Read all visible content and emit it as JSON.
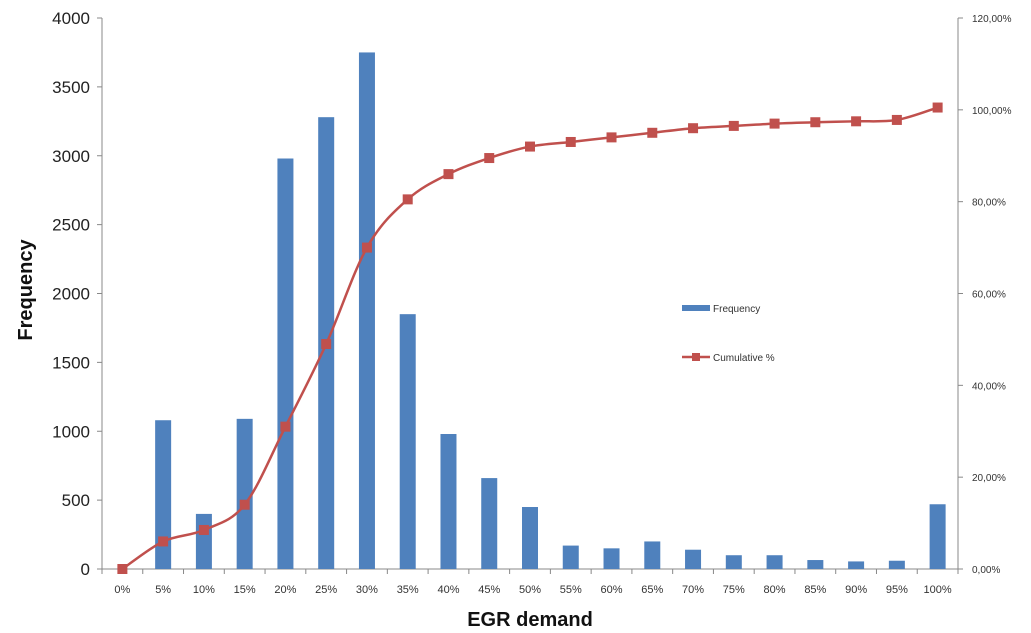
{
  "chart_data": {
    "type": "bar+line",
    "categories": [
      "0%",
      "5%",
      "10%",
      "15%",
      "20%",
      "25%",
      "30%",
      "35%",
      "40%",
      "45%",
      "50%",
      "55%",
      "60%",
      "65%",
      "70%",
      "75%",
      "80%",
      "85%",
      "90%",
      "95%",
      "100%"
    ],
    "series": [
      {
        "name": "Frequency",
        "type": "bar",
        "axis": "left",
        "color": "#4f81bd",
        "values": [
          0,
          1080,
          400,
          1090,
          2980,
          3280,
          3750,
          1850,
          980,
          660,
          450,
          170,
          150,
          200,
          140,
          100,
          100,
          65,
          55,
          60,
          470
        ]
      },
      {
        "name": "Cumulative %",
        "type": "line",
        "axis": "right",
        "color": "#c0504d",
        "marker": "square",
        "values": [
          0,
          6,
          8.5,
          14,
          31,
          49,
          70,
          80.5,
          86,
          89.5,
          92,
          93,
          94,
          95,
          96,
          96.5,
          97,
          97.3,
          97.5,
          97.8,
          100.5
        ]
      }
    ],
    "xlabel": "EGR demand",
    "ylabel": "Frequency",
    "ylim": [
      0,
      4000
    ],
    "y_ticks": [
      "0",
      "500",
      "1000",
      "1500",
      "2000",
      "2500",
      "3000",
      "3500",
      "4000"
    ],
    "y2lim": [
      0,
      120
    ],
    "y2_ticks": [
      "0,00%",
      "20,00%",
      "40,00%",
      "60,00%",
      "80,00%",
      "100,00%",
      "120,00%"
    ],
    "grid": false,
    "legend_position": "center-right",
    "legend": [
      {
        "label": "Frequency",
        "color": "#4f81bd",
        "kind": "bar"
      },
      {
        "label": "Cumulative %",
        "color": "#c0504d",
        "kind": "line"
      }
    ]
  }
}
